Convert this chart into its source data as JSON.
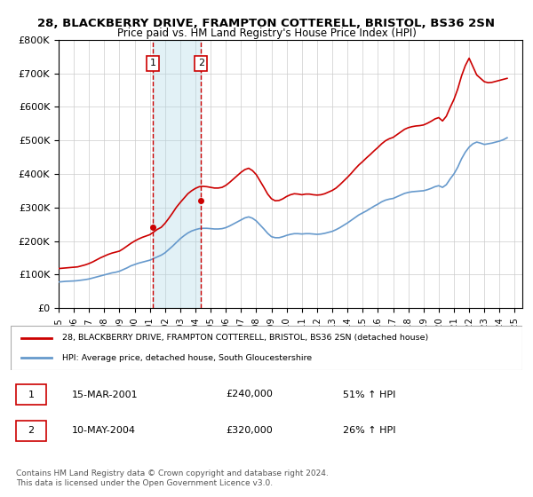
{
  "title": "28, BLACKBERRY DRIVE, FRAMPTON COTTERELL, BRISTOL, BS36 2SN",
  "subtitle": "Price paid vs. HM Land Registry's House Price Index (HPI)",
  "title_fontsize": 10,
  "subtitle_fontsize": 9,
  "ylabel_ticks": [
    "£0",
    "£100K",
    "£200K",
    "£300K",
    "£400K",
    "£500K",
    "£600K",
    "£700K",
    "£800K"
  ],
  "ytick_values": [
    0,
    100000,
    200000,
    300000,
    400000,
    500000,
    600000,
    700000,
    800000
  ],
  "ylim": [
    0,
    800000
  ],
  "xlim_start": 1995.0,
  "xlim_end": 2025.5,
  "purchase_dates": [
    2001.21,
    2004.36
  ],
  "purchase_prices": [
    240000,
    320000
  ],
  "purchase_labels": [
    "1",
    "2"
  ],
  "legend_line1": "28, BLACKBERRY DRIVE, FRAMPTON COTTERELL, BRISTOL, BS36 2SN (detached house)",
  "legend_line2": "HPI: Average price, detached house, South Gloucestershire",
  "table_data": [
    [
      "1",
      "15-MAR-2001",
      "£240,000",
      "51% ↑ HPI"
    ],
    [
      "2",
      "10-MAY-2004",
      "£320,000",
      "26% ↑ HPI"
    ]
  ],
  "footnote": "Contains HM Land Registry data © Crown copyright and database right 2024.\nThis data is licensed under the Open Government Licence v3.0.",
  "red_color": "#cc0000",
  "blue_color": "#6699cc",
  "hpi_data_x": [
    1995.0,
    1995.25,
    1995.5,
    1995.75,
    1996.0,
    1996.25,
    1996.5,
    1996.75,
    1997.0,
    1997.25,
    1997.5,
    1997.75,
    1998.0,
    1998.25,
    1998.5,
    1998.75,
    1999.0,
    1999.25,
    1999.5,
    1999.75,
    2000.0,
    2000.25,
    2000.5,
    2000.75,
    2001.0,
    2001.25,
    2001.5,
    2001.75,
    2002.0,
    2002.25,
    2002.5,
    2002.75,
    2003.0,
    2003.25,
    2003.5,
    2003.75,
    2004.0,
    2004.25,
    2004.5,
    2004.75,
    2005.0,
    2005.25,
    2005.5,
    2005.75,
    2006.0,
    2006.25,
    2006.5,
    2006.75,
    2007.0,
    2007.25,
    2007.5,
    2007.75,
    2008.0,
    2008.25,
    2008.5,
    2008.75,
    2009.0,
    2009.25,
    2009.5,
    2009.75,
    2010.0,
    2010.25,
    2010.5,
    2010.75,
    2011.0,
    2011.25,
    2011.5,
    2011.75,
    2012.0,
    2012.25,
    2012.5,
    2012.75,
    2013.0,
    2013.25,
    2013.5,
    2013.75,
    2014.0,
    2014.25,
    2014.5,
    2014.75,
    2015.0,
    2015.25,
    2015.5,
    2015.75,
    2016.0,
    2016.25,
    2016.5,
    2016.75,
    2017.0,
    2017.25,
    2017.5,
    2017.75,
    2018.0,
    2018.25,
    2018.5,
    2018.75,
    2019.0,
    2019.25,
    2019.5,
    2019.75,
    2020.0,
    2020.25,
    2020.5,
    2020.75,
    2021.0,
    2021.25,
    2021.5,
    2021.75,
    2022.0,
    2022.25,
    2022.5,
    2022.75,
    2023.0,
    2023.25,
    2023.5,
    2023.75,
    2024.0,
    2024.25,
    2024.5
  ],
  "hpi_data_y": [
    78000,
    79000,
    80000,
    80500,
    81000,
    82000,
    83500,
    85000,
    87000,
    90000,
    93000,
    96000,
    99000,
    102000,
    105000,
    107000,
    110000,
    115000,
    120000,
    126000,
    130000,
    134000,
    137000,
    140000,
    143000,
    148000,
    153000,
    158000,
    165000,
    175000,
    185000,
    196000,
    207000,
    216000,
    224000,
    230000,
    234000,
    237000,
    238000,
    238000,
    237000,
    236000,
    236000,
    237000,
    240000,
    245000,
    251000,
    257000,
    263000,
    269000,
    272000,
    268000,
    260000,
    248000,
    236000,
    223000,
    213000,
    210000,
    210000,
    213000,
    217000,
    220000,
    222000,
    222000,
    221000,
    222000,
    222000,
    221000,
    220000,
    221000,
    223000,
    226000,
    229000,
    234000,
    240000,
    247000,
    254000,
    262000,
    270000,
    278000,
    284000,
    290000,
    297000,
    304000,
    310000,
    317000,
    322000,
    325000,
    327000,
    332000,
    337000,
    342000,
    345000,
    347000,
    348000,
    349000,
    350000,
    353000,
    357000,
    362000,
    365000,
    360000,
    368000,
    385000,
    400000,
    420000,
    445000,
    465000,
    480000,
    490000,
    495000,
    492000,
    488000,
    490000,
    492000,
    495000,
    498000,
    502000,
    508000
  ],
  "property_data_x": [
    1995.0,
    1995.25,
    1995.5,
    1995.75,
    1996.0,
    1996.25,
    1996.5,
    1996.75,
    1997.0,
    1997.25,
    1997.5,
    1997.75,
    1998.0,
    1998.25,
    1998.5,
    1998.75,
    1999.0,
    1999.25,
    1999.5,
    1999.75,
    2000.0,
    2000.25,
    2000.5,
    2000.75,
    2001.0,
    2001.25,
    2001.5,
    2001.75,
    2002.0,
    2002.25,
    2002.5,
    2002.75,
    2003.0,
    2003.25,
    2003.5,
    2003.75,
    2004.0,
    2004.25,
    2004.5,
    2004.75,
    2005.0,
    2005.25,
    2005.5,
    2005.75,
    2006.0,
    2006.25,
    2006.5,
    2006.75,
    2007.0,
    2007.25,
    2007.5,
    2007.75,
    2008.0,
    2008.25,
    2008.5,
    2008.75,
    2009.0,
    2009.25,
    2009.5,
    2009.75,
    2010.0,
    2010.25,
    2010.5,
    2010.75,
    2011.0,
    2011.25,
    2011.5,
    2011.75,
    2012.0,
    2012.25,
    2012.5,
    2012.75,
    2013.0,
    2013.25,
    2013.5,
    2013.75,
    2014.0,
    2014.25,
    2014.5,
    2014.75,
    2015.0,
    2015.25,
    2015.5,
    2015.75,
    2016.0,
    2016.25,
    2016.5,
    2016.75,
    2017.0,
    2017.25,
    2017.5,
    2017.75,
    2018.0,
    2018.25,
    2018.5,
    2018.75,
    2019.0,
    2019.25,
    2019.5,
    2019.75,
    2020.0,
    2020.25,
    2020.5,
    2020.75,
    2021.0,
    2021.25,
    2021.5,
    2021.75,
    2022.0,
    2022.25,
    2022.5,
    2022.75,
    2023.0,
    2023.25,
    2023.5,
    2023.75,
    2024.0,
    2024.25,
    2024.5
  ],
  "property_data_y": [
    118000,
    119000,
    120000,
    121000,
    122000,
    123000,
    126000,
    129000,
    133000,
    138000,
    144000,
    150000,
    155000,
    160000,
    164000,
    167000,
    170000,
    177000,
    185000,
    193000,
    200000,
    206000,
    211000,
    215000,
    219000,
    227000,
    235000,
    241000,
    253000,
    268000,
    284000,
    301000,
    315000,
    328000,
    341000,
    350000,
    357000,
    362000,
    363000,
    362000,
    360000,
    358000,
    358000,
    360000,
    366000,
    375000,
    385000,
    395000,
    405000,
    413000,
    417000,
    410000,
    398000,
    379000,
    360000,
    340000,
    326000,
    320000,
    321000,
    326000,
    333000,
    338000,
    341000,
    340000,
    338000,
    340000,
    340000,
    338000,
    337000,
    338000,
    341000,
    346000,
    351000,
    358000,
    368000,
    379000,
    390000,
    402000,
    415000,
    427000,
    437000,
    448000,
    458000,
    469000,
    479000,
    490000,
    499000,
    505000,
    509000,
    517000,
    525000,
    533000,
    538000,
    541000,
    543000,
    544000,
    546000,
    551000,
    557000,
    564000,
    568000,
    558000,
    572000,
    598000,
    622000,
    653000,
    692000,
    723000,
    745000,
    720000,
    695000,
    685000,
    675000,
    672000,
    673000,
    676000,
    679000,
    682000,
    685000
  ]
}
